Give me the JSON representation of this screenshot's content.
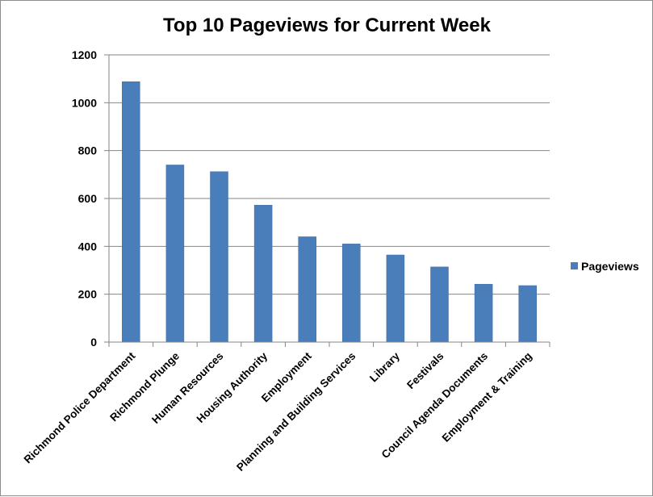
{
  "chart_data": {
    "type": "bar",
    "title": "Top 10 Pageviews for Current Week",
    "xlabel": "",
    "ylabel": "",
    "categories": [
      "Richmond Police Department",
      "Richmond Plunge",
      "Human Resources",
      "Housing Authority",
      "Employment",
      "Planning and Building Services",
      "Library",
      "Festivals",
      "Council Agenda Documents",
      "Employment & Training"
    ],
    "series": [
      {
        "name": "Pageviews",
        "color": "#4a7ebb",
        "values": [
          1088,
          740,
          712,
          572,
          440,
          410,
          364,
          314,
          242,
          236
        ]
      }
    ],
    "ylim": [
      0,
      1200
    ],
    "yticks": [
      "0",
      "200",
      "400",
      "600",
      "800",
      "1000",
      "1200"
    ],
    "grid": true,
    "legend_position": "right"
  }
}
